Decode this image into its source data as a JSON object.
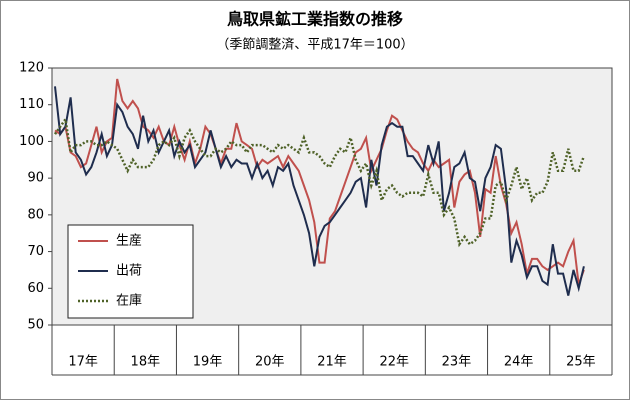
{
  "chart_data": {
    "type": "line",
    "title": "鳥取県鉱工業指数の推移",
    "subtitle": "（季節調整済、平成17年＝100）",
    "year_labels": [
      "17年",
      "18年",
      "19年",
      "20年",
      "21年",
      "22年",
      "23年",
      "24年",
      "25年"
    ],
    "ylim": [
      50,
      120
    ],
    "yticks": [
      50,
      60,
      70,
      80,
      90,
      100,
      110,
      120
    ],
    "grid": false,
    "legend": "lower-left",
    "series": [
      {
        "name": "生産",
        "color": "#c0504d",
        "dash": "solid",
        "values": [
          103,
          102,
          104,
          97,
          96,
          93,
          94,
          99,
          104,
          97,
          100,
          101,
          117,
          111,
          109,
          111,
          109,
          104,
          103,
          101,
          104,
          100,
          99,
          104,
          99,
          95,
          100,
          94,
          98,
          104,
          102,
          98,
          94,
          98,
          98,
          105,
          100,
          99,
          98,
          93,
          95,
          94,
          95,
          96,
          93,
          96,
          94,
          92,
          88,
          84,
          78,
          67,
          67,
          79,
          81,
          85,
          89,
          93,
          97,
          98,
          101,
          92,
          95,
          98,
          103,
          107,
          106,
          103,
          100,
          98,
          97,
          94,
          92,
          95,
          93,
          94,
          95,
          82,
          89,
          91,
          92,
          86,
          74,
          87,
          86,
          96,
          88,
          83,
          75,
          78,
          72,
          64,
          68,
          68,
          66,
          65,
          66,
          67,
          66,
          70,
          73,
          61,
          65
        ]
      },
      {
        "name": "出荷",
        "color": "#1f2d4e",
        "dash": "solid",
        "values": [
          115,
          102,
          104,
          112,
          97,
          95,
          91,
          93,
          97,
          102,
          96,
          99,
          110,
          108,
          104,
          102,
          98,
          107,
          100,
          103,
          97,
          100,
          103,
          96,
          100,
          97,
          99,
          93,
          95,
          97,
          103,
          98,
          93,
          96,
          93,
          95,
          94,
          94,
          90,
          94,
          90,
          92,
          88,
          93,
          92,
          94,
          88,
          84,
          80,
          75,
          66,
          74,
          77,
          78,
          80,
          82,
          84,
          86,
          89,
          90,
          82,
          95,
          88,
          99,
          104,
          105,
          104,
          104,
          96,
          96,
          94,
          92,
          99,
          94,
          100,
          81,
          86,
          93,
          94,
          97,
          90,
          89,
          81,
          90,
          93,
          99,
          98,
          87,
          67,
          73,
          69,
          63,
          66,
          66,
          62,
          61,
          72,
          64,
          64,
          58,
          65,
          60,
          66
        ]
      },
      {
        "name": "在庫",
        "color": "#4f6228",
        "dash": "dotted",
        "values": [
          102,
          104,
          106,
          97,
          99,
          99,
          100,
          100,
          99,
          99,
          100,
          99,
          98,
          95,
          92,
          95,
          93,
          93,
          93,
          95,
          99,
          100,
          99,
          101,
          96,
          101,
          103,
          100,
          98,
          96,
          96,
          98,
          97,
          98,
          100,
          99,
          99,
          97,
          99,
          99,
          99,
          98,
          97,
          99,
          98,
          99,
          98,
          97,
          101,
          97,
          97,
          96,
          94,
          93,
          96,
          98,
          97,
          101,
          95,
          92,
          94,
          88,
          92,
          84,
          87,
          88,
          86,
          85,
          86,
          86,
          86,
          85,
          91,
          86,
          86,
          80,
          82,
          79,
          72,
          74,
          72,
          73,
          75,
          79,
          79,
          88,
          89,
          84,
          88,
          93,
          87,
          90,
          84,
          86,
          86,
          89,
          97,
          92,
          92,
          98,
          92,
          92,
          96
        ]
      }
    ]
  }
}
